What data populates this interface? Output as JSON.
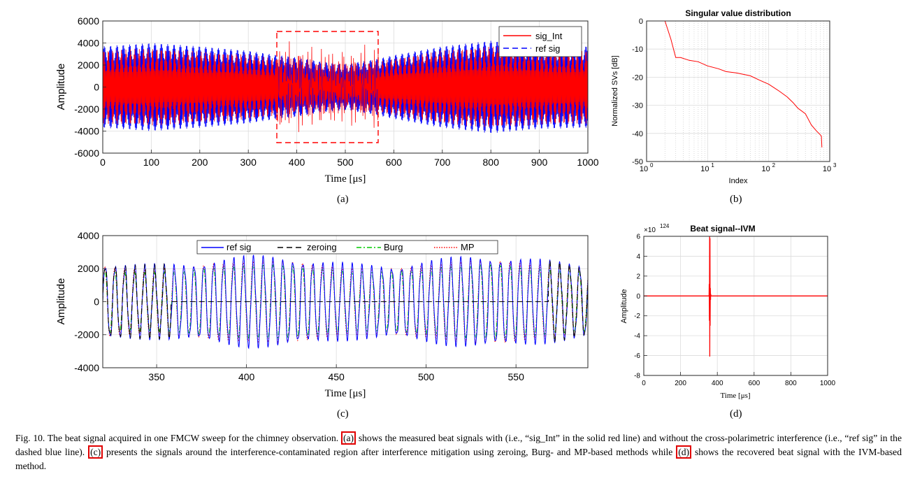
{
  "chart_data": [
    {
      "id": "a",
      "type": "line",
      "ylabel": "Amplitude",
      "xlabel": "Time [μs]",
      "xlim": [
        0,
        1000
      ],
      "ylim": [
        -6000,
        6000
      ],
      "xticks": [
        "0",
        "100",
        "200",
        "300",
        "400",
        "500",
        "600",
        "700",
        "800",
        "900",
        "1000"
      ],
      "yticks": [
        "6000",
        "4000",
        "2000",
        "0",
        "-2000",
        "-4000",
        "-6000"
      ],
      "legend": [
        "sig_Int",
        "ref sig"
      ],
      "grid": true,
      "series": [
        {
          "name": "sig_Int",
          "color": "#ff0000",
          "style": "solid",
          "envelope": [
            [
              0,
              3600
            ],
            [
              100,
              3800
            ],
            [
              200,
              3500
            ],
            [
              300,
              3200
            ],
            [
              360,
              2800
            ],
            [
              400,
              2600
            ],
            [
              450,
              2200
            ],
            [
              500,
              2000
            ],
            [
              560,
              2400
            ],
            [
              600,
              2800
            ],
            [
              700,
              3600
            ],
            [
              800,
              4000
            ],
            [
              900,
              3700
            ],
            [
              1000,
              3600
            ]
          ],
          "interference": [
            [
              360,
              570,
              3400
            ]
          ]
        },
        {
          "name": "ref sig",
          "color": "#0000ff",
          "style": "dashed",
          "envelope": [
            [
              0,
              3700
            ],
            [
              100,
              4000
            ],
            [
              200,
              3700
            ],
            [
              300,
              3300
            ],
            [
              360,
              2900
            ],
            [
              400,
              2700
            ],
            [
              450,
              2300
            ],
            [
              500,
              2100
            ],
            [
              560,
              2500
            ],
            [
              600,
              2900
            ],
            [
              700,
              3700
            ],
            [
              800,
              4200
            ],
            [
              900,
              3800
            ],
            [
              1000,
              3700
            ]
          ]
        }
      ],
      "annotation": {
        "type": "dashed-box",
        "x": [
          360,
          570
        ],
        "y": [
          -5000,
          5000
        ]
      }
    },
    {
      "id": "b",
      "type": "line",
      "title": "Singular value distribution",
      "ylabel": "Normalized SVs [dB]",
      "xlabel": "Index",
      "xscale": "log",
      "xlim": [
        1,
        1000
      ],
      "ylim": [
        -50,
        0
      ],
      "xticks": [
        "10",
        "10",
        "10",
        "10"
      ],
      "xtick_exponents": [
        "0",
        "1",
        "2",
        "3"
      ],
      "yticks": [
        "0",
        "-10",
        "-20",
        "-30",
        "-40",
        "-50"
      ],
      "grid": true,
      "series": [
        {
          "name": "SV",
          "color": "#ff0000",
          "x": [
            1,
            1.5,
            2,
            2.5,
            3,
            3.6,
            5,
            7,
            10,
            15,
            20,
            30,
            50,
            70,
            100,
            150,
            200,
            250,
            300,
            400,
            500,
            600,
            700
          ],
          "values": [
            0,
            0,
            0,
            -6.5,
            -13,
            -13,
            -14,
            -14.5,
            -16,
            -17,
            -18,
            -18.5,
            -19.5,
            -21,
            -22.5,
            -25,
            -27,
            -29,
            -31,
            -33,
            -37,
            -39,
            -40.5
          ]
        }
      ]
    },
    {
      "id": "c",
      "type": "line",
      "ylabel": "Amplitude",
      "xlabel": "Time [μs]",
      "xlim": [
        320,
        590
      ],
      "ylim": [
        -4000,
        4000
      ],
      "xticks": [
        "350",
        "400",
        "450",
        "500",
        "550"
      ],
      "yticks": [
        "4000",
        "2000",
        "0",
        "-2000",
        "-4000"
      ],
      "legend": [
        "ref sig",
        "zeroing",
        "Burg",
        "MP"
      ],
      "grid": true,
      "series": [
        {
          "name": "ref sig",
          "color": "#0000ff",
          "style": "solid",
          "amplitude": 2600,
          "period": 5.5
        },
        {
          "name": "zeroing",
          "color": "#000000",
          "style": "dashed",
          "zero_range": [
            358,
            568
          ]
        },
        {
          "name": "Burg",
          "color": "#00cc00",
          "style": "dashdot"
        },
        {
          "name": "MP",
          "color": "#ff0000",
          "style": "dotted"
        }
      ]
    },
    {
      "id": "d",
      "type": "line",
      "title": "Beat signal--IVM",
      "ylabel": "Amplitude",
      "xlabel": "Time [μs]",
      "exponent_base": "×10",
      "exponent": "124",
      "xlim": [
        0,
        1000
      ],
      "ylim": [
        -8,
        6
      ],
      "xticks": [
        "0",
        "200",
        "400",
        "600",
        "800",
        "1000"
      ],
      "yticks": [
        "6",
        "4",
        "2",
        "0",
        "-2",
        "-4",
        "-6",
        "-8"
      ],
      "grid": true,
      "series": [
        {
          "name": "IVM",
          "color": "#ff0000",
          "x": [
            0,
            355,
            356,
            357,
            358,
            359,
            360,
            361,
            362,
            363,
            364,
            365,
            1000
          ],
          "values": [
            0,
            0,
            1.2,
            -2.5,
            6,
            -6.1,
            5.8,
            -3,
            0.8,
            -0.4,
            0.2,
            0,
            0
          ]
        }
      ]
    }
  ],
  "labels": {
    "a": "(a)",
    "b": "(b)",
    "c": "(c)",
    "d": "(d)"
  },
  "caption": {
    "prefix": "Fig. 10.  The beat signal acquired in one FMCW sweep for the chimney observation. ",
    "ref_a": "(a)",
    "part1": " shows the measured beat signals with (i.e., “sig_Int” in the solid red line) and without the cross-polarimetric interference (i.e., “ref sig” in the dashed blue line). ",
    "ref_c": "(c)",
    "part2": " presents the signals around the interference-contaminated region after interference mitigation using zeroing, Burg- and MP-based methods while ",
    "ref_d": "(d)",
    "part3": " shows the recovered beat signal with the IVM-based method."
  }
}
